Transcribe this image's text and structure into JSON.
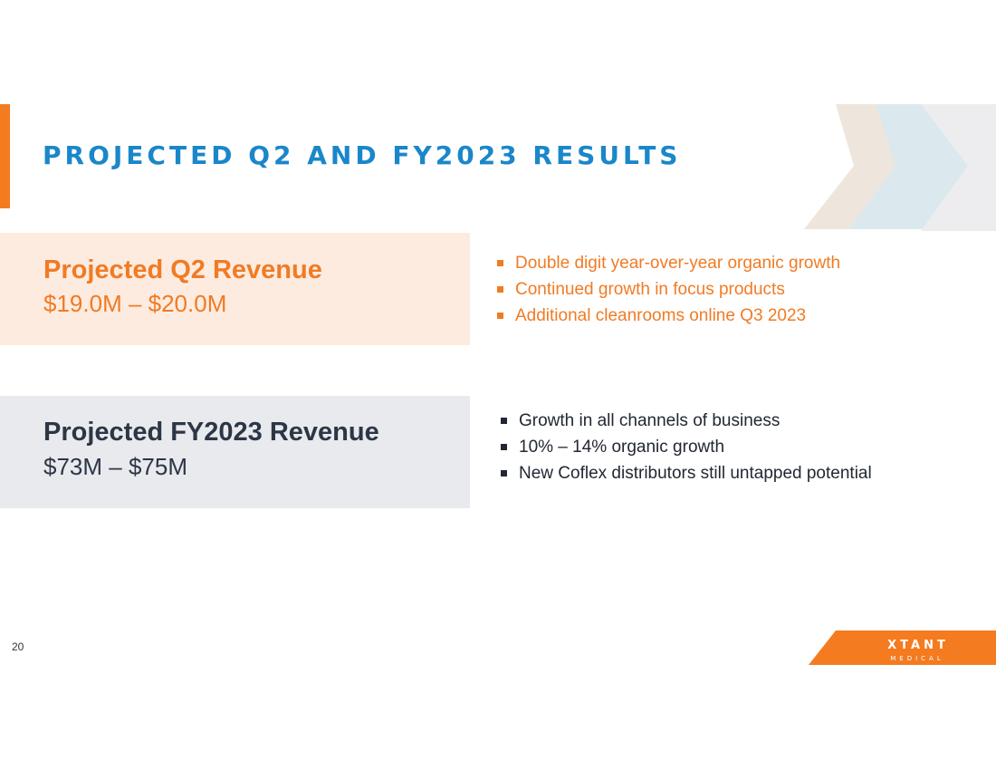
{
  "slide": {
    "title": "PROJECTED Q2 AND FY2023 RESULTS",
    "page_number": "20"
  },
  "q2": {
    "heading": "Projected Q2 Revenue",
    "value": "$19.0M  – $20.0M",
    "bullets": [
      "Double digit year-over-year organic growth",
      "Continued growth in focus products",
      "Additional cleanrooms online Q3 2023"
    ]
  },
  "fy": {
    "heading": "Projected FY2023 Revenue",
    "value": "$73M – $75M",
    "bullets": [
      "Growth in all channels of business",
      "10% – 14% organic growth",
      "New Coflex distributors still untapped potential"
    ]
  },
  "logo": {
    "name": "XTANT",
    "subtitle": "MEDICAL"
  },
  "colors": {
    "accent_orange": "#f47b20",
    "title_blue": "#1a87c9",
    "q2_panel_bg": "#fdebe0",
    "fy_panel_bg": "#e9eaee",
    "fy_text": "#2d3645"
  }
}
